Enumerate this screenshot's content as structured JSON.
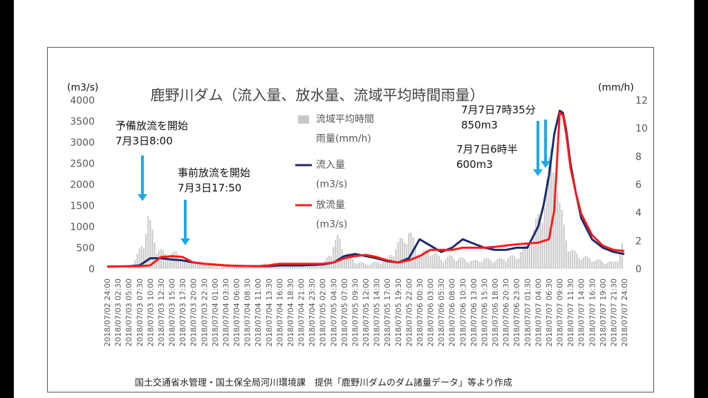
{
  "chart_data": {
    "type": "line",
    "title": "鹿野川ダム（流入量、放水量、流域平均時間雨量）",
    "ylabel_left": "(m3/s)",
    "ylabel_right": "(mm/h)",
    "ylim_left": [
      0,
      4000
    ],
    "ylim_right": [
      0,
      12
    ],
    "yticks_left": [
      "0",
      "500",
      "1000",
      "1500",
      "2000",
      "2500",
      "3000",
      "3500",
      "4000"
    ],
    "yticks_right": [
      "0",
      "2",
      "4",
      "6",
      "8",
      "10",
      "12"
    ],
    "xticks": [
      "2018/07/02 24:00",
      "2018/07/03 02:30",
      "2018/07/03 05:00",
      "2018/07/03 07:30",
      "2018/07/03 10:00",
      "2018/07/03 12:30",
      "2018/07/03 15:00",
      "2018/07/03 17:30",
      "2018/07/03 20:00",
      "2018/07/03 22:30",
      "2018/07/04 01:00",
      "2018/07/04 03:30",
      "2018/07/04 06:00",
      "2018/07/04 08:30",
      "2018/07/04 11:00",
      "2018/07/04 13:30",
      "2018/07/04 16:00",
      "2018/07/04 18:30",
      "2018/07/04 21:00",
      "2018/07/04 23:30",
      "2018/07/05 02:00",
      "2018/07/05 04:30",
      "2018/07/05 07:00",
      "2018/07/05 09:30",
      "2018/07/05 12:00",
      "2018/07/05 14:30",
      "2018/07/05 17:00",
      "2018/07/05 19:30",
      "2018/07/05 22:00",
      "2018/07/06 00:30",
      "2018/07/06 03:00",
      "2018/07/06 05:30",
      "2018/07/06 08:00",
      "2018/07/06 10:30",
      "2018/07/06 13:00",
      "2018/07/06 15:30",
      "2018/07/06 18:00",
      "2018/07/06 20:30",
      "2018/07/06 23:00",
      "2018/07/07 01:30",
      "2018/07/07 04:00",
      "2018/07/07 06:30",
      "2018/07/07 09:00",
      "2018/07/07 11:30",
      "2018/07/07 14:00",
      "2018/07/07 16:30",
      "2018/07/07 19:00",
      "2018/07/07 21:30",
      "2018/07/07 24:00"
    ],
    "series": [
      {
        "name": "流入量\n(m3/s)",
        "color": "#1b2a6b",
        "axis": "left",
        "x": [
          0,
          2,
          3,
          4,
          5,
          6,
          7,
          8,
          9,
          10,
          11,
          12,
          14,
          15,
          16,
          18,
          19,
          20,
          21,
          22,
          23,
          24,
          25,
          26,
          27,
          28,
          29,
          30,
          31,
          32,
          33,
          34,
          35,
          36,
          37,
          38,
          39,
          40,
          40.5,
          41,
          41.5,
          42,
          42.3,
          42.6,
          43,
          43.5,
          44,
          45,
          46,
          47,
          48
        ],
        "values": [
          50,
          60,
          80,
          250,
          250,
          220,
          200,
          150,
          120,
          100,
          80,
          70,
          60,
          60,
          80,
          80,
          90,
          100,
          150,
          300,
          350,
          300,
          250,
          180,
          150,
          250,
          700,
          550,
          400,
          500,
          700,
          600,
          500,
          450,
          450,
          500,
          500,
          1000,
          1500,
          2200,
          3200,
          3750,
          3700,
          3300,
          2500,
          1800,
          1200,
          700,
          500,
          400,
          350
        ]
      },
      {
        "name": "放流量\n(m3/s)",
        "color": "#ff1a1a",
        "axis": "left",
        "x": [
          0,
          2,
          3,
          4,
          5,
          6,
          7,
          8,
          9,
          10,
          11,
          12,
          14,
          15,
          16,
          18,
          19,
          20,
          21,
          22,
          23,
          24,
          25,
          26,
          27,
          28,
          29,
          30,
          31,
          32,
          33,
          34,
          35,
          36,
          37,
          38,
          39,
          40,
          41,
          41.5,
          42,
          42.3,
          42.6,
          43,
          43.5,
          44,
          45,
          46,
          47,
          48
        ],
        "values": [
          50,
          60,
          60,
          80,
          280,
          300,
          280,
          150,
          120,
          100,
          80,
          70,
          60,
          80,
          120,
          120,
          120,
          120,
          150,
          250,
          300,
          330,
          280,
          200,
          150,
          200,
          300,
          450,
          450,
          450,
          500,
          500,
          500,
          520,
          550,
          580,
          600,
          620,
          700,
          1400,
          3700,
          3650,
          3200,
          2400,
          1800,
          1300,
          800,
          550,
          450,
          420
        ]
      },
      {
        "name": "流域平均時間雨量(mm/h)",
        "color": "#c8c8c8",
        "axis": "right",
        "x": [
          2,
          2.5,
          3,
          3.5,
          3.7,
          4,
          4.5,
          5,
          5.5,
          6,
          6.5,
          7,
          7.5,
          8,
          9,
          10,
          14,
          15,
          18,
          20,
          20.5,
          21,
          21.5,
          22,
          23,
          24,
          25,
          26,
          27,
          27.5,
          28,
          29,
          30,
          31,
          32,
          33,
          34,
          35,
          36,
          37,
          38,
          39,
          39.5,
          40,
          40.3,
          40.6,
          41,
          41.2,
          41.5,
          41.8,
          42,
          42.5,
          43,
          44,
          45,
          46,
          47,
          47.5,
          48
        ],
        "values": [
          0.3,
          0.5,
          1.5,
          2.5,
          4.5,
          3.5,
          2,
          1.5,
          1,
          1.4,
          1.2,
          0.8,
          0.7,
          0.6,
          0.5,
          0.3,
          0.2,
          0.5,
          0.2,
          0.3,
          1,
          2,
          2.5,
          1.5,
          0.6,
          0.4,
          0.5,
          0.8,
          2,
          2.5,
          3,
          1.2,
          1.5,
          0.8,
          1,
          0.8,
          0.6,
          0.8,
          0.7,
          0.9,
          1,
          2,
          3,
          4,
          5,
          6,
          8,
          9,
          8.5,
          7,
          5,
          3,
          1.5,
          1,
          0.8,
          0.6,
          0.5,
          1,
          2.5
        ]
      }
    ],
    "annotations": [
      {
        "text": "予備放流を開始\n7月3日8:00",
        "x": 3.5,
        "y": 1500
      },
      {
        "text": "事前放流を開始\n7月3日17:50",
        "x": 7.3,
        "y": 450
      },
      {
        "text": "7月7日6時半\n600m3",
        "x": 41.4,
        "y": 2050
      },
      {
        "text": "7月7日7時35分\n850m3",
        "x": 42,
        "y": 2400
      }
    ],
    "legend": "top-center",
    "arrow_color": "#1ea8e6"
  },
  "source": "国土交通省水管理・国土保全局河川環境課　提供「鹿野川ダムのダム諸量データ」等より作成"
}
